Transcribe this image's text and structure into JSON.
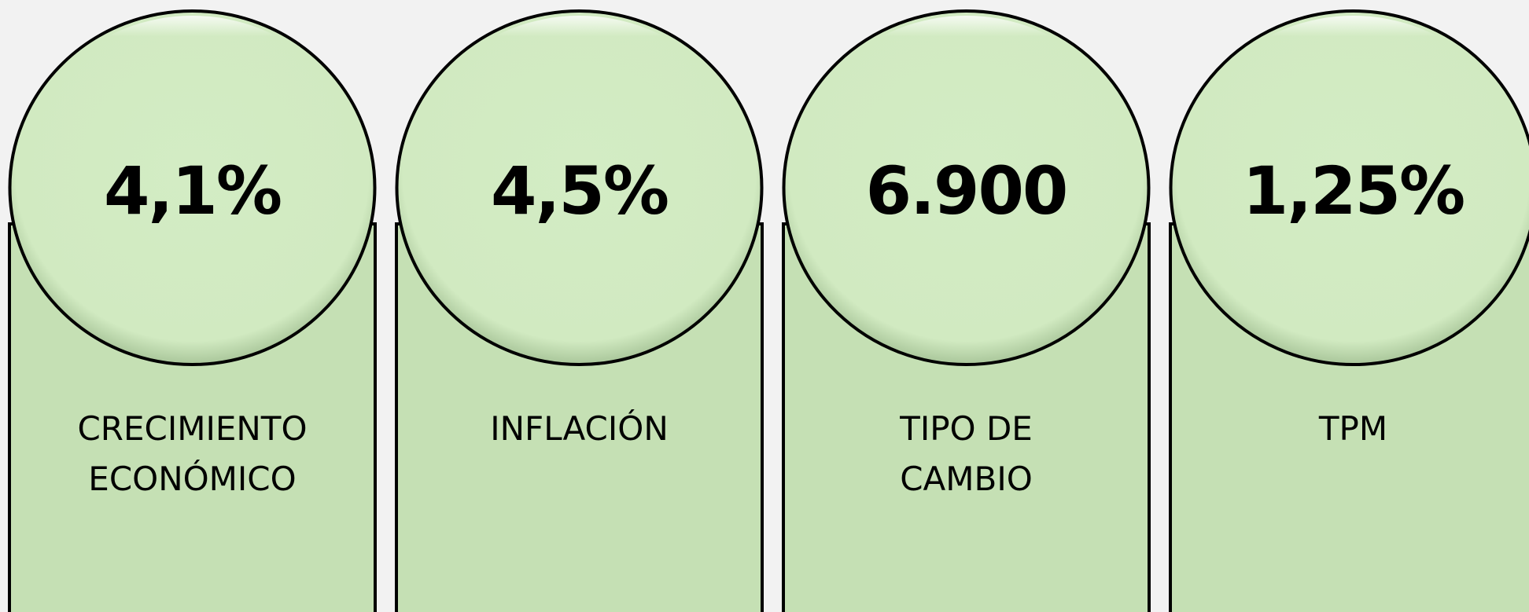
{
  "cards": [
    {
      "value": "4,1%",
      "label": [
        "CRECIMIENTO",
        "ECONÓMICO"
      ]
    },
    {
      "value": "4,5%",
      "label": [
        "INFLACIÓN"
      ]
    },
    {
      "value": "6.900",
      "label": [
        "TIPO DE",
        "CAMBIO"
      ]
    },
    {
      "value": "1,25%",
      "label": [
        "TPM"
      ]
    }
  ]
}
